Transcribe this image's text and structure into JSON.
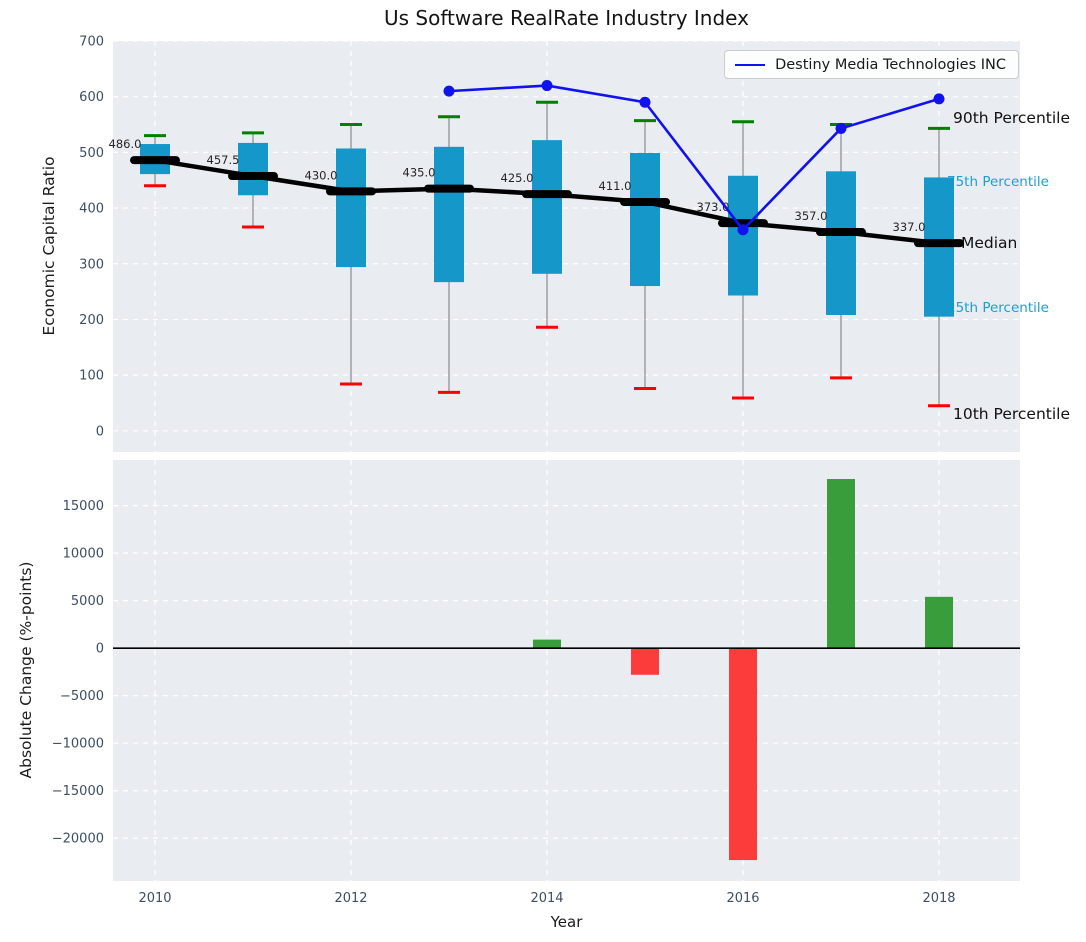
{
  "figure_title": "Us Software RealRate Industry Index",
  "colors": {
    "axes_background": "#e9edf1",
    "gridline": "#ffffff",
    "box_fill": "#1697c9",
    "median_line": "#000000",
    "whisker_line": "#8a8a8a",
    "p90_cap": "#008000",
    "p10_cap": "#fe0000",
    "company_line": "#1212ee",
    "bar_positive": "#3a9d3b",
    "bar_negative": "#fc3b3b",
    "tick_label": "#3d4e63",
    "annotation_text": "#262626",
    "percentile_label_minor": "#1b9fd4"
  },
  "legend": {
    "label": "Destiny Media Technologies INC"
  },
  "chart_data": [
    {
      "type": "boxplot+line",
      "title": "Us Software RealRate Industry Index",
      "ylabel": "Economic Capital Ratio",
      "ylim": [
        -38,
        700
      ],
      "yticks": [
        0,
        100,
        200,
        300,
        400,
        500,
        600,
        700
      ],
      "grid": "white-dashed",
      "legend_position": "upper right",
      "years": [
        2010,
        2011,
        2012,
        2013,
        2014,
        2015,
        2016,
        2017,
        2018
      ],
      "boxes": [
        {
          "year": 2010,
          "p90": 530,
          "p75": 515,
          "median": 486.0,
          "p25": 461,
          "p10": 440,
          "median_label": "486.0"
        },
        {
          "year": 2011,
          "p90": 535,
          "p75": 517,
          "median": 457.5,
          "p25": 423,
          "p10": 366,
          "median_label": "457.5"
        },
        {
          "year": 2012,
          "p90": 550,
          "p75": 507,
          "median": 430.0,
          "p25": 294,
          "p10": 84,
          "median_label": "430.0"
        },
        {
          "year": 2013,
          "p90": 564,
          "p75": 510,
          "median": 435.0,
          "p25": 267,
          "p10": 69,
          "median_label": "435.0"
        },
        {
          "year": 2014,
          "p90": 590,
          "p75": 522,
          "median": 425.0,
          "p25": 282,
          "p10": 186,
          "median_label": "425.0"
        },
        {
          "year": 2015,
          "p90": 557,
          "p75": 499,
          "median": 411.0,
          "p25": 260,
          "p10": 76,
          "median_label": "411.0"
        },
        {
          "year": 2016,
          "p90": 555,
          "p75": 458,
          "median": 373.0,
          "p25": 243,
          "p10": 59,
          "median_label": "373.0"
        },
        {
          "year": 2017,
          "p90": 550,
          "p75": 466,
          "median": 357.0,
          "p25": 208,
          "p10": 95,
          "median_label": "357.0"
        },
        {
          "year": 2018,
          "p90": 543,
          "p75": 455,
          "median": 337.0,
          "p25": 205,
          "p10": 45,
          "median_label": "337.0"
        }
      ],
      "series": [
        {
          "name": "Destiny Media Technologies INC",
          "x": [
            2013,
            2014,
            2015,
            2016,
            2017,
            2018
          ],
          "y": [
            610,
            620,
            590,
            361,
            543,
            596
          ],
          "marker": "circle"
        }
      ],
      "right_labels": [
        {
          "text": "90th Percentile",
          "style": "major"
        },
        {
          "text": "75th Percentile",
          "style": "minor"
        },
        {
          "text": "Median",
          "style": "major"
        },
        {
          "text": "25th Percentile",
          "style": "minor"
        },
        {
          "text": "10th Percentile",
          "style": "major"
        }
      ]
    },
    {
      "type": "bar",
      "ylabel": "Absolute Change (%-points)",
      "xlabel": "Year",
      "ylim": [
        -24500,
        19800
      ],
      "yticks": [
        15000,
        10000,
        5000,
        0,
        -5000,
        -10000,
        -15000,
        -20000
      ],
      "ytick_labels": [
        "15000",
        "10000",
        "5000",
        "0",
        "−5000",
        "−10000",
        "−15000",
        "−20000"
      ],
      "xticks": [
        2010,
        2012,
        2014,
        2016,
        2018
      ],
      "xtick_labels": [
        "2010",
        "2012",
        "2014",
        "2016",
        "2018"
      ],
      "zero_line": true,
      "x": [
        2014,
        2015,
        2016,
        2017,
        2018
      ],
      "values": [
        900,
        -2800,
        -22300,
        17800,
        5400
      ]
    }
  ]
}
